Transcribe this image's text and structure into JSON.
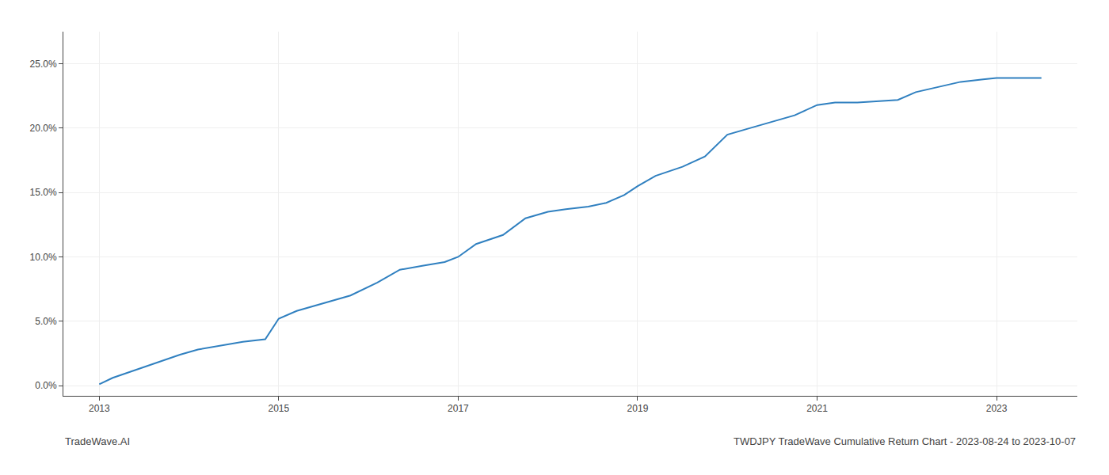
{
  "chart_data": {
    "type": "line",
    "title": "TWDJPY TradeWave Cumulative Return Chart - 2023-08-24 to 2023-10-07",
    "annotations": [
      {
        "text": "TradeWave.AI"
      }
    ],
    "x": [
      2013.0,
      2013.15,
      2013.4,
      2013.65,
      2013.9,
      2014.1,
      2014.35,
      2014.6,
      2014.85,
      2015.0,
      2015.2,
      2015.5,
      2015.8,
      2016.1,
      2016.35,
      2016.6,
      2016.85,
      2017.0,
      2017.2,
      2017.5,
      2017.75,
      2018.0,
      2018.2,
      2018.45,
      2018.65,
      2018.85,
      2019.0,
      2019.2,
      2019.5,
      2019.75,
      2020.0,
      2020.25,
      2020.5,
      2020.75,
      2021.0,
      2021.2,
      2021.45,
      2021.7,
      2021.9,
      2022.1,
      2022.35,
      2022.6,
      2022.85,
      2023.0,
      2023.5
    ],
    "values": [
      0.001,
      0.006,
      0.012,
      0.018,
      0.024,
      0.028,
      0.031,
      0.034,
      0.036,
      0.052,
      0.058,
      0.064,
      0.07,
      0.08,
      0.09,
      0.093,
      0.096,
      0.1,
      0.11,
      0.117,
      0.13,
      0.135,
      0.137,
      0.139,
      0.142,
      0.148,
      0.155,
      0.163,
      0.17,
      0.178,
      0.195,
      0.2,
      0.205,
      0.21,
      0.218,
      0.22,
      0.22,
      0.221,
      0.222,
      0.228,
      0.232,
      0.236,
      0.238,
      0.239,
      0.239
    ],
    "color": "#3080c0",
    "xlim": [
      2012.6,
      2023.9
    ],
    "ylim": [
      -0.008,
      0.275
    ],
    "xticks": [
      2013,
      2015,
      2017,
      2019,
      2021,
      2023
    ],
    "yticks": [
      {
        "value": 0.0,
        "label": "0.0%"
      },
      {
        "value": 0.05,
        "label": "5.0%"
      },
      {
        "value": 0.1,
        "label": "10.0%"
      },
      {
        "value": 0.15,
        "label": "15.0%"
      },
      {
        "value": 0.2,
        "label": "20.0%"
      },
      {
        "value": 0.25,
        "label": "25.0%"
      }
    ],
    "grid": true
  }
}
